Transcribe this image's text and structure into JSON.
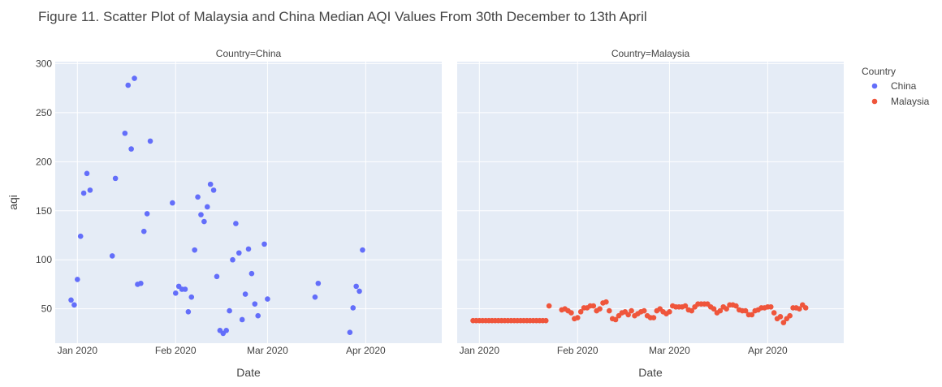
{
  "chart_data": {
    "type": "scatter",
    "title": "Figure 11. Scatter Plot of Malaysia and China Median AQI Values From 30th December to 13th April",
    "xlabel": "Date",
    "ylabel": "aqi",
    "x_ticks": [
      {
        "date": "2020-01-01",
        "label": "Jan 2020"
      },
      {
        "date": "2020-02-01",
        "label": "Feb 2020"
      },
      {
        "date": "2020-03-01",
        "label": "Mar 2020"
      },
      {
        "date": "2020-04-01",
        "label": "Apr 2020"
      }
    ],
    "y_ticks": [
      50,
      100,
      150,
      200,
      250,
      300
    ],
    "xlim": [
      "2019-12-25",
      "2020-04-25"
    ],
    "ylim": [
      15,
      302
    ],
    "grid": true,
    "legend": {
      "title": "Country",
      "placement": "right",
      "entries": [
        {
          "name": "China",
          "color": "#636efa"
        },
        {
          "name": "Malaysia",
          "color": "#ef553b"
        }
      ]
    },
    "facets": [
      {
        "label": "Country=China",
        "color": "#636efa",
        "points": [
          [
            "2019-12-30",
            59
          ],
          [
            "2019-12-31",
            54
          ],
          [
            "2020-01-01",
            80
          ],
          [
            "2020-01-02",
            124
          ],
          [
            "2020-01-03",
            168
          ],
          [
            "2020-01-04",
            188
          ],
          [
            "2020-01-05",
            171
          ],
          [
            "2020-01-12",
            104
          ],
          [
            "2020-01-13",
            183
          ],
          [
            "2020-01-16",
            229
          ],
          [
            "2020-01-17",
            278
          ],
          [
            "2020-01-18",
            213
          ],
          [
            "2020-01-19",
            285
          ],
          [
            "2020-01-20",
            75
          ],
          [
            "2020-01-21",
            76
          ],
          [
            "2020-01-22",
            129
          ],
          [
            "2020-01-23",
            147
          ],
          [
            "2020-01-24",
            221
          ],
          [
            "2020-01-31",
            158
          ],
          [
            "2020-02-01",
            66
          ],
          [
            "2020-02-02",
            73
          ],
          [
            "2020-02-03",
            70
          ],
          [
            "2020-02-04",
            70
          ],
          [
            "2020-02-05",
            47
          ],
          [
            "2020-02-06",
            62
          ],
          [
            "2020-02-07",
            110
          ],
          [
            "2020-02-08",
            164
          ],
          [
            "2020-02-09",
            146
          ],
          [
            "2020-02-10",
            139
          ],
          [
            "2020-02-11",
            154
          ],
          [
            "2020-02-12",
            177
          ],
          [
            "2020-02-13",
            171
          ],
          [
            "2020-02-14",
            83
          ],
          [
            "2020-02-15",
            28
          ],
          [
            "2020-02-16",
            25
          ],
          [
            "2020-02-17",
            28
          ],
          [
            "2020-02-18",
            48
          ],
          [
            "2020-02-19",
            100
          ],
          [
            "2020-02-20",
            137
          ],
          [
            "2020-02-21",
            107
          ],
          [
            "2020-02-22",
            39
          ],
          [
            "2020-02-23",
            65
          ],
          [
            "2020-02-24",
            111
          ],
          [
            "2020-02-25",
            86
          ],
          [
            "2020-02-26",
            55
          ],
          [
            "2020-02-27",
            43
          ],
          [
            "2020-02-29",
            116
          ],
          [
            "2020-03-01",
            60
          ],
          [
            "2020-03-16",
            62
          ],
          [
            "2020-03-17",
            76
          ],
          [
            "2020-03-27",
            26
          ],
          [
            "2020-03-28",
            51
          ],
          [
            "2020-03-29",
            73
          ],
          [
            "2020-03-30",
            68
          ],
          [
            "2020-03-31",
            110
          ]
        ]
      },
      {
        "label": "Country=Malaysia",
        "color": "#ef553b",
        "points": [
          [
            "2019-12-30",
            38
          ],
          [
            "2019-12-31",
            38
          ],
          [
            "2020-01-01",
            38
          ],
          [
            "2020-01-02",
            38
          ],
          [
            "2020-01-03",
            38
          ],
          [
            "2020-01-04",
            38
          ],
          [
            "2020-01-05",
            38
          ],
          [
            "2020-01-06",
            38
          ],
          [
            "2020-01-07",
            38
          ],
          [
            "2020-01-08",
            38
          ],
          [
            "2020-01-09",
            38
          ],
          [
            "2020-01-10",
            38
          ],
          [
            "2020-01-11",
            38
          ],
          [
            "2020-01-12",
            38
          ],
          [
            "2020-01-13",
            38
          ],
          [
            "2020-01-14",
            38
          ],
          [
            "2020-01-15",
            38
          ],
          [
            "2020-01-16",
            38
          ],
          [
            "2020-01-17",
            38
          ],
          [
            "2020-01-18",
            38
          ],
          [
            "2020-01-19",
            38
          ],
          [
            "2020-01-20",
            38
          ],
          [
            "2020-01-21",
            38
          ],
          [
            "2020-01-22",
            38
          ],
          [
            "2020-01-23",
            53
          ],
          [
            "2020-01-27",
            49
          ],
          [
            "2020-01-28",
            50
          ],
          [
            "2020-01-29",
            48
          ],
          [
            "2020-01-30",
            46
          ],
          [
            "2020-01-31",
            40
          ],
          [
            "2020-02-01",
            41
          ],
          [
            "2020-02-02",
            47
          ],
          [
            "2020-02-03",
            51
          ],
          [
            "2020-02-04",
            51
          ],
          [
            "2020-02-05",
            53
          ],
          [
            "2020-02-06",
            53
          ],
          [
            "2020-02-07",
            48
          ],
          [
            "2020-02-08",
            50
          ],
          [
            "2020-02-09",
            56
          ],
          [
            "2020-02-10",
            57
          ],
          [
            "2020-02-11",
            48
          ],
          [
            "2020-02-12",
            40
          ],
          [
            "2020-02-13",
            39
          ],
          [
            "2020-02-14",
            43
          ],
          [
            "2020-02-15",
            46
          ],
          [
            "2020-02-16",
            47
          ],
          [
            "2020-02-17",
            44
          ],
          [
            "2020-02-18",
            48
          ],
          [
            "2020-02-19",
            43
          ],
          [
            "2020-02-20",
            45
          ],
          [
            "2020-02-21",
            47
          ],
          [
            "2020-02-22",
            48
          ],
          [
            "2020-02-23",
            43
          ],
          [
            "2020-02-24",
            41
          ],
          [
            "2020-02-25",
            41
          ],
          [
            "2020-02-26",
            48
          ],
          [
            "2020-02-27",
            50
          ],
          [
            "2020-02-28",
            47
          ],
          [
            "2020-02-29",
            45
          ],
          [
            "2020-03-01",
            47
          ],
          [
            "2020-03-02",
            53
          ],
          [
            "2020-03-03",
            52
          ],
          [
            "2020-03-04",
            52
          ],
          [
            "2020-03-05",
            52
          ],
          [
            "2020-03-06",
            53
          ],
          [
            "2020-03-07",
            49
          ],
          [
            "2020-03-08",
            48
          ],
          [
            "2020-03-09",
            52
          ],
          [
            "2020-03-10",
            55
          ],
          [
            "2020-03-11",
            55
          ],
          [
            "2020-03-12",
            55
          ],
          [
            "2020-03-13",
            55
          ],
          [
            "2020-03-14",
            52
          ],
          [
            "2020-03-15",
            50
          ],
          [
            "2020-03-16",
            46
          ],
          [
            "2020-03-17",
            48
          ],
          [
            "2020-03-18",
            52
          ],
          [
            "2020-03-19",
            50
          ],
          [
            "2020-03-20",
            54
          ],
          [
            "2020-03-21",
            54
          ],
          [
            "2020-03-22",
            53
          ],
          [
            "2020-03-23",
            49
          ],
          [
            "2020-03-24",
            48
          ],
          [
            "2020-03-25",
            48
          ],
          [
            "2020-03-26",
            44
          ],
          [
            "2020-03-27",
            44
          ],
          [
            "2020-03-28",
            48
          ],
          [
            "2020-03-29",
            49
          ],
          [
            "2020-03-30",
            51
          ],
          [
            "2020-03-31",
            51
          ],
          [
            "2020-04-01",
            52
          ],
          [
            "2020-04-02",
            52
          ],
          [
            "2020-04-03",
            46
          ],
          [
            "2020-04-04",
            40
          ],
          [
            "2020-04-05",
            42
          ],
          [
            "2020-04-06",
            36
          ],
          [
            "2020-04-07",
            40
          ],
          [
            "2020-04-08",
            43
          ],
          [
            "2020-04-09",
            51
          ],
          [
            "2020-04-10",
            51
          ],
          [
            "2020-04-11",
            50
          ],
          [
            "2020-04-12",
            54
          ],
          [
            "2020-04-13",
            51
          ]
        ]
      }
    ]
  }
}
